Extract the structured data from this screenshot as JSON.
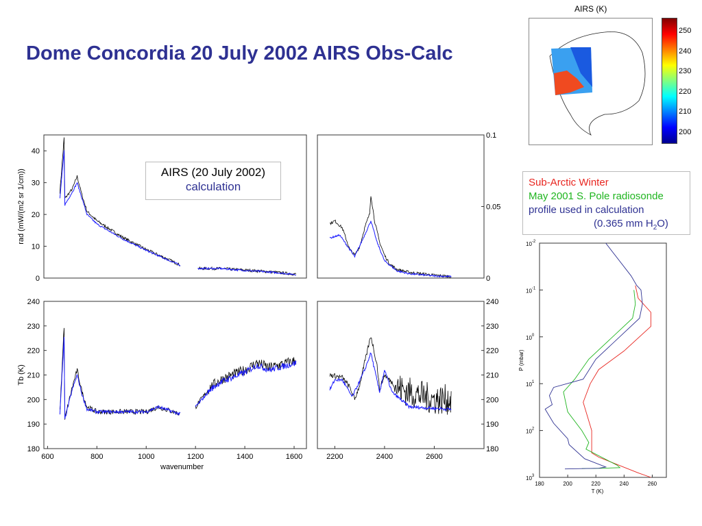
{
  "title": "Dome Concordia 20 July 2002 AIRS Obs-Calc",
  "legend_spectra": {
    "obs": "AIRS (20 July 2002)",
    "calc": "calculation"
  },
  "legend_profile": {
    "line1": "Sub-Arctic Winter",
    "line2": "May 2001 S. Pole radiosonde",
    "line3": "profile used in calculation",
    "line4_pre": "(0.365 mm H",
    "line4_sub": "2",
    "line4_post": "O)"
  },
  "map": {
    "title": "AIRS (K)",
    "colorbar_ticks": [
      "250",
      "240",
      "230",
      "220",
      "210",
      "200"
    ]
  },
  "colors": {
    "title": "#2e3192",
    "obs": "#000000",
    "calc": "#1a1aff",
    "red": "#e8251f",
    "green": "#1fb51f",
    "blue": "#2e3192"
  },
  "chart_data": [
    {
      "type": "line",
      "name": "radiance-low",
      "ylabel": "rad (mW/(m2 sr 1/cm))",
      "xlim": [
        585,
        1650
      ],
      "ylim": [
        0,
        45
      ],
      "yticks": [
        "0",
        "10",
        "20",
        "30",
        "40"
      ],
      "series": [
        {
          "name": "AIRS obs",
          "points": [
            [
              650,
              27
            ],
            [
              667,
              44
            ],
            [
              670,
              25
            ],
            [
              700,
              28
            ],
            [
              720,
              32
            ],
            [
              740,
              26
            ],
            [
              760,
              21
            ],
            [
              800,
              18
            ],
            [
              900,
              13
            ],
            [
              1000,
              9
            ],
            [
              1100,
              5.5
            ],
            [
              1140,
              4
            ],
            null,
            [
              1210,
              3
            ],
            [
              1300,
              3
            ],
            [
              1400,
              2.5
            ],
            [
              1500,
              2
            ],
            [
              1610,
              1.2
            ]
          ]
        },
        {
          "name": "calculation",
          "points": [
            [
              650,
              25
            ],
            [
              667,
              40
            ],
            [
              670,
              23
            ],
            [
              700,
              27
            ],
            [
              720,
              30
            ],
            [
              740,
              25
            ],
            [
              760,
              20
            ],
            [
              800,
              17
            ],
            [
              900,
              12.5
            ],
            [
              1000,
              8.7
            ],
            [
              1100,
              5.3
            ],
            [
              1140,
              4
            ],
            null,
            [
              1210,
              3
            ],
            [
              1300,
              3
            ],
            [
              1400,
              2.4
            ],
            [
              1500,
              1.9
            ],
            [
              1610,
              1.1
            ]
          ]
        }
      ]
    },
    {
      "type": "line",
      "name": "radiance-high",
      "xlim": [
        2130,
        2800
      ],
      "ylim": [
        0,
        0.1
      ],
      "yticks": [
        "0",
        "0.05",
        "0.1"
      ],
      "series": [
        {
          "name": "AIRS obs",
          "points": [
            [
              2180,
              0.038
            ],
            [
              2200,
              0.04
            ],
            [
              2230,
              0.035
            ],
            [
              2260,
              0.02
            ],
            [
              2280,
              0.016
            ],
            [
              2300,
              0.022
            ],
            [
              2320,
              0.035
            ],
            [
              2340,
              0.045
            ],
            [
              2345,
              0.058
            ],
            [
              2360,
              0.04
            ],
            [
              2380,
              0.025
            ],
            [
              2400,
              0.016
            ],
            [
              2420,
              0.01
            ],
            [
              2450,
              0.006
            ],
            [
              2500,
              0.004
            ],
            [
              2600,
              0.002
            ],
            [
              2670,
              0.001
            ]
          ]
        },
        {
          "name": "calculation",
          "points": [
            [
              2180,
              0.028
            ],
            [
              2220,
              0.03
            ],
            [
              2260,
              0.02
            ],
            [
              2280,
              0.015
            ],
            [
              2320,
              0.03
            ],
            [
              2345,
              0.04
            ],
            [
              2370,
              0.025
            ],
            [
              2400,
              0.012
            ],
            [
              2450,
              0.005
            ],
            [
              2500,
              0.003
            ],
            [
              2600,
              0.0015
            ],
            [
              2670,
              0.001
            ]
          ]
        }
      ]
    },
    {
      "type": "line",
      "name": "tb-low",
      "ylabel": "Tb (K)",
      "xlabel": "wavenumber",
      "xlim": [
        585,
        1650
      ],
      "ylim": [
        180,
        240
      ],
      "xticks": [
        "600",
        "800",
        "1000",
        "1200",
        "1400",
        "1600"
      ],
      "yticks": [
        "180",
        "190",
        "200",
        "210",
        "220",
        "230",
        "240"
      ],
      "series": [
        {
          "name": "AIRS obs",
          "points": [
            [
              650,
              195
            ],
            [
              667,
              230
            ],
            [
              670,
              192
            ],
            [
              700,
              205
            ],
            [
              720,
              212
            ],
            [
              740,
              203
            ],
            [
              760,
              197
            ],
            [
              800,
              195
            ],
            [
              900,
              195
            ],
            [
              1000,
              195
            ],
            [
              1050,
              197
            ],
            [
              1140,
              194
            ],
            null,
            [
              1200,
              197
            ],
            [
              1260,
              205
            ],
            [
              1300,
              208
            ],
            [
              1400,
              212
            ],
            [
              1450,
              215
            ],
            [
              1500,
              213
            ],
            [
              1610,
              216
            ]
          ]
        },
        {
          "name": "calculation",
          "points": [
            [
              650,
              194
            ],
            [
              667,
              225
            ],
            [
              670,
              192
            ],
            [
              700,
              204
            ],
            [
              720,
              210
            ],
            [
              740,
              202
            ],
            [
              760,
              196
            ],
            [
              800,
              195
            ],
            [
              900,
              195
            ],
            [
              1000,
              195
            ],
            [
              1050,
              197
            ],
            [
              1140,
              194
            ],
            null,
            [
              1200,
              197
            ],
            [
              1260,
              204
            ],
            [
              1300,
              207
            ],
            [
              1400,
              211
            ],
            [
              1450,
              214
            ],
            [
              1500,
              212
            ],
            [
              1610,
              215
            ]
          ]
        }
      ]
    },
    {
      "type": "line",
      "name": "tb-high",
      "xlim": [
        2130,
        2800
      ],
      "ylim": [
        180,
        240
      ],
      "xticks": [
        "2200",
        "2400",
        "2600"
      ],
      "yticks": [
        "180",
        "190",
        "200",
        "210",
        "220",
        "230",
        "240"
      ],
      "series": [
        {
          "name": "AIRS obs",
          "points": [
            [
              2180,
              210
            ],
            [
              2230,
              209
            ],
            [
              2260,
              205
            ],
            [
              2280,
              200
            ],
            [
              2300,
              206
            ],
            [
              2320,
              215
            ],
            [
              2345,
              226
            ],
            [
              2370,
              214
            ],
            [
              2380,
              204
            ],
            [
              2400,
              210
            ],
            [
              2430,
              207
            ],
            [
              2450,
              205
            ],
            [
              2500,
              203
            ],
            [
              2600,
              200
            ],
            [
              2670,
              200
            ]
          ]
        },
        {
          "name": "calculation",
          "points": [
            [
              2180,
              204
            ],
            [
              2200,
              208
            ],
            [
              2230,
              208
            ],
            [
              2270,
              201
            ],
            [
              2320,
              212
            ],
            [
              2345,
              219
            ],
            [
              2380,
              203
            ],
            [
              2400,
              212
            ],
            [
              2430,
              203
            ],
            [
              2500,
              197
            ],
            [
              2670,
              196
            ]
          ]
        }
      ]
    },
    {
      "type": "line",
      "name": "temperature-profile",
      "xlabel": "T (K)",
      "ylabel": "P (mbar)",
      "xlim": [
        180,
        270
      ],
      "ylim": [
        0.01,
        1000
      ],
      "yscale": "log",
      "xticks": [
        "180",
        "200",
        "220",
        "240",
        "260"
      ],
      "yticks_exp": [
        "-2",
        "-1",
        "0",
        "1",
        "2",
        "3"
      ],
      "series": [
        {
          "name": "Sub-Arctic Winter",
          "color": "red",
          "points": [
            [
              248,
              0.08
            ],
            [
              250,
              0.15
            ],
            [
              259,
              0.3
            ],
            [
              259,
              0.6
            ],
            [
              240,
              2
            ],
            [
              222,
              5
            ],
            [
              216,
              10
            ],
            [
              211,
              25
            ],
            [
              217,
              100
            ],
            [
              217,
              300
            ],
            [
              222,
              370
            ],
            [
              250,
              800
            ],
            [
              259,
              1000
            ]
          ]
        },
        {
          "name": "May 2001 S. Pole radiosonde",
          "color": "green",
          "points": [
            [
              247,
              0.1
            ],
            [
              248,
              0.2
            ],
            [
              246,
              0.4
            ],
            [
              215,
              3
            ],
            [
              205,
              8
            ],
            [
              197,
              15
            ],
            [
              200,
              40
            ],
            [
              210,
              100
            ],
            [
              215,
              180
            ],
            [
              213,
              250
            ],
            [
              235,
              550
            ],
            [
              237,
              620
            ],
            [
              225,
              640
            ],
            [
              210,
              650
            ]
          ]
        },
        {
          "name": "profile used in calculation",
          "color": "blue",
          "points": [
            [
              227,
              0.01
            ],
            [
              245,
              0.05
            ],
            [
              249,
              0.08
            ],
            [
              252,
              0.1
            ],
            [
              253,
              0.2
            ],
            [
              251,
              0.4
            ],
            [
              220,
              3
            ],
            [
              211,
              8
            ],
            [
              190,
              12
            ],
            [
              187,
              18
            ],
            [
              189,
              28
            ],
            [
              184,
              35
            ],
            [
              190,
              70
            ],
            [
              200,
              150
            ],
            [
              201,
              200
            ],
            [
              212,
              400
            ],
            [
              227,
              600
            ],
            [
              222,
              640
            ],
            [
              198,
              660
            ]
          ]
        }
      ]
    }
  ]
}
